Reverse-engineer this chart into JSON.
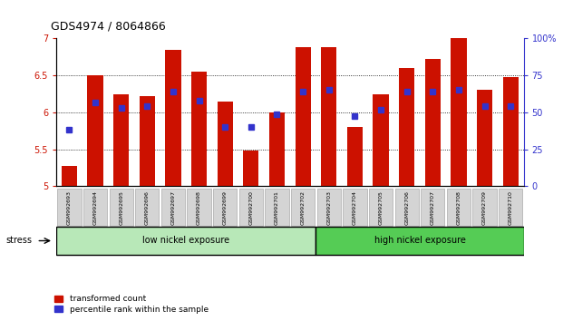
{
  "title": "GDS4974 / 8064866",
  "samples": [
    "GSM992693",
    "GSM992694",
    "GSM992695",
    "GSM992696",
    "GSM992697",
    "GSM992698",
    "GSM992699",
    "GSM992700",
    "GSM992701",
    "GSM992702",
    "GSM992703",
    "GSM992704",
    "GSM992705",
    "GSM992706",
    "GSM992707",
    "GSM992708",
    "GSM992709",
    "GSM992710"
  ],
  "bar_heights": [
    5.28,
    6.5,
    6.25,
    6.22,
    6.85,
    6.55,
    6.15,
    5.48,
    6.0,
    6.88,
    6.88,
    5.8,
    6.25,
    6.6,
    6.72,
    7.0,
    6.3,
    6.48
  ],
  "percentile_values": [
    5.77,
    6.13,
    6.06,
    6.08,
    6.28,
    6.16,
    5.8,
    5.8,
    5.97,
    6.28,
    6.3,
    5.95,
    6.04,
    6.28,
    6.28,
    6.3,
    6.08,
    6.08
  ],
  "ylim": [
    5.0,
    7.0
  ],
  "yticks_left": [
    5.0,
    5.5,
    6.0,
    6.5,
    7.0
  ],
  "right_yticks": [
    0,
    25,
    50,
    75,
    100
  ],
  "bar_color": "#cc1100",
  "percentile_color": "#3333cc",
  "bar_width": 0.6,
  "low_nickel_count": 10,
  "high_nickel_count": 8,
  "group_labels": [
    "low nickel exposure",
    "high nickel exposure"
  ],
  "group_color_low": "#b8e8b8",
  "group_color_high": "#55cc55",
  "stress_label": "stress",
  "legend_bar_label": "transformed count",
  "legend_percentile_label": "percentile rank within the sample",
  "bg_color": "#ffffff"
}
